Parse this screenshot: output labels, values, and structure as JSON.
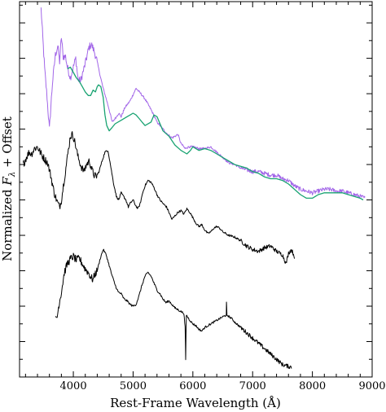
{
  "chart_data": {
    "type": "line",
    "xlabel": "Rest-Frame Wavelength (Å)",
    "ylabel": "Normalized F_λ + Offset",
    "xlim": [
      3100,
      9000
    ],
    "x_ticks": [
      4000,
      5000,
      6000,
      7000,
      8000,
      9000
    ],
    "y_tick_values": false,
    "colors": {
      "violet": "#a266e8",
      "green": "#19a372",
      "black": "#000000"
    },
    "series": [
      {
        "color": "violet",
        "noisy": true,
        "points": [
          [
            3460,
            10.4
          ],
          [
            3490,
            9.55
          ],
          [
            3520,
            8.7
          ],
          [
            3560,
            7.9
          ],
          [
            3600,
            7.0
          ],
          [
            3650,
            8.3
          ],
          [
            3700,
            9.1
          ],
          [
            3740,
            9.35
          ],
          [
            3770,
            8.9
          ],
          [
            3800,
            9.6
          ],
          [
            3830,
            9.05
          ],
          [
            3870,
            9.05
          ],
          [
            3900,
            8.75
          ],
          [
            3950,
            8.45
          ],
          [
            4000,
            8.75
          ],
          [
            4040,
            9.0
          ],
          [
            4080,
            8.4
          ],
          [
            4120,
            8.35
          ],
          [
            4200,
            8.85
          ],
          [
            4260,
            9.3
          ],
          [
            4300,
            9.4
          ],
          [
            4350,
            9.2
          ],
          [
            4400,
            8.9
          ],
          [
            4450,
            8.5
          ],
          [
            4500,
            8.15
          ],
          [
            4560,
            7.8
          ],
          [
            4600,
            7.55
          ],
          [
            4650,
            7.2
          ],
          [
            4700,
            7.3
          ],
          [
            4760,
            7.45
          ],
          [
            4800,
            7.35
          ],
          [
            4860,
            7.6
          ],
          [
            4950,
            7.8
          ],
          [
            5050,
            8.15
          ],
          [
            5130,
            8.0
          ],
          [
            5200,
            7.85
          ],
          [
            5300,
            7.55
          ],
          [
            5400,
            7.2
          ],
          [
            5500,
            7.0
          ],
          [
            5580,
            6.85
          ],
          [
            5650,
            6.75
          ],
          [
            5750,
            6.85
          ],
          [
            5800,
            6.6
          ],
          [
            5870,
            6.45
          ],
          [
            5930,
            6.5
          ],
          [
            6000,
            6.5
          ],
          [
            6100,
            6.45
          ],
          [
            6200,
            6.45
          ],
          [
            6300,
            6.5
          ],
          [
            6400,
            6.35
          ],
          [
            6500,
            6.2
          ],
          [
            6600,
            6.05
          ],
          [
            6700,
            6.0
          ],
          [
            6800,
            5.9
          ],
          [
            6900,
            5.85
          ],
          [
            7000,
            5.8
          ],
          [
            7100,
            5.8
          ],
          [
            7200,
            5.75
          ],
          [
            7300,
            5.7
          ],
          [
            7400,
            5.7
          ],
          [
            7500,
            5.6
          ],
          [
            7600,
            5.55
          ],
          [
            7700,
            5.4
          ],
          [
            7800,
            5.3
          ],
          [
            7900,
            5.25
          ],
          [
            8000,
            5.2
          ],
          [
            8100,
            5.25
          ],
          [
            8200,
            5.3
          ],
          [
            8300,
            5.3
          ],
          [
            8400,
            5.25
          ],
          [
            8500,
            5.25
          ],
          [
            8600,
            5.2
          ],
          [
            8700,
            5.15
          ],
          [
            8800,
            5.1
          ],
          [
            8880,
            5.05
          ]
        ]
      },
      {
        "color": "green",
        "noisy": false,
        "points": [
          [
            3900,
            8.7
          ],
          [
            3950,
            8.75
          ],
          [
            4000,
            8.6
          ],
          [
            4050,
            8.45
          ],
          [
            4100,
            8.35
          ],
          [
            4150,
            8.2
          ],
          [
            4200,
            8.05
          ],
          [
            4250,
            7.95
          ],
          [
            4290,
            7.95
          ],
          [
            4330,
            8.1
          ],
          [
            4370,
            8.05
          ],
          [
            4400,
            8.2
          ],
          [
            4420,
            8.25
          ],
          [
            4460,
            8.2
          ],
          [
            4500,
            7.9
          ],
          [
            4530,
            7.4
          ],
          [
            4560,
            7.1
          ],
          [
            4600,
            6.95
          ],
          [
            4650,
            7.05
          ],
          [
            4700,
            7.15
          ],
          [
            4800,
            7.25
          ],
          [
            4900,
            7.35
          ],
          [
            4950,
            7.4
          ],
          [
            5000,
            7.45
          ],
          [
            5050,
            7.4
          ],
          [
            5100,
            7.3
          ],
          [
            5150,
            7.2
          ],
          [
            5200,
            7.1
          ],
          [
            5300,
            7.2
          ],
          [
            5350,
            7.4
          ],
          [
            5400,
            7.35
          ],
          [
            5450,
            7.15
          ],
          [
            5500,
            6.95
          ],
          [
            5600,
            6.8
          ],
          [
            5700,
            6.55
          ],
          [
            5800,
            6.4
          ],
          [
            5900,
            6.3
          ],
          [
            5960,
            6.4
          ],
          [
            6000,
            6.5
          ],
          [
            6100,
            6.4
          ],
          [
            6200,
            6.45
          ],
          [
            6300,
            6.4
          ],
          [
            6400,
            6.3
          ],
          [
            6500,
            6.2
          ],
          [
            6600,
            6.1
          ],
          [
            6700,
            6.0
          ],
          [
            6800,
            5.95
          ],
          [
            6900,
            5.9
          ],
          [
            7000,
            5.8
          ],
          [
            7100,
            5.75
          ],
          [
            7200,
            5.65
          ],
          [
            7300,
            5.6
          ],
          [
            7400,
            5.6
          ],
          [
            7500,
            5.55
          ],
          [
            7600,
            5.45
          ],
          [
            7700,
            5.3
          ],
          [
            7800,
            5.15
          ],
          [
            7900,
            5.05
          ],
          [
            8000,
            5.05
          ],
          [
            8050,
            5.1
          ],
          [
            8100,
            5.15
          ],
          [
            8200,
            5.2
          ],
          [
            8300,
            5.2
          ],
          [
            8400,
            5.2
          ],
          [
            8500,
            5.2
          ],
          [
            8600,
            5.15
          ],
          [
            8700,
            5.1
          ],
          [
            8800,
            5.05
          ],
          [
            8850,
            5.0
          ]
        ]
      },
      {
        "color": "black",
        "noisy": true,
        "points": [
          [
            3160,
            6.0
          ],
          [
            3200,
            6.15
          ],
          [
            3260,
            6.35
          ],
          [
            3300,
            6.3
          ],
          [
            3350,
            6.45
          ],
          [
            3400,
            6.5
          ],
          [
            3460,
            6.3
          ],
          [
            3520,
            6.15
          ],
          [
            3570,
            6.05
          ],
          [
            3620,
            5.7
          ],
          [
            3680,
            5.2
          ],
          [
            3730,
            4.95
          ],
          [
            3770,
            4.8
          ],
          [
            3800,
            5.0
          ],
          [
            3850,
            5.6
          ],
          [
            3900,
            6.2
          ],
          [
            3950,
            6.8
          ],
          [
            3990,
            6.85
          ],
          [
            4030,
            6.6
          ],
          [
            4080,
            6.2
          ],
          [
            4130,
            5.95
          ],
          [
            4180,
            5.8
          ],
          [
            4220,
            6.0
          ],
          [
            4270,
            6.1
          ],
          [
            4310,
            5.85
          ],
          [
            4350,
            5.7
          ],
          [
            4380,
            5.65
          ],
          [
            4430,
            5.8
          ],
          [
            4480,
            6.1
          ],
          [
            4530,
            6.35
          ],
          [
            4580,
            6.4
          ],
          [
            4620,
            6.0
          ],
          [
            4670,
            5.5
          ],
          [
            4720,
            5.1
          ],
          [
            4760,
            5.0
          ],
          [
            4800,
            5.2
          ],
          [
            4840,
            5.1
          ],
          [
            4880,
            5.0
          ],
          [
            4920,
            4.8
          ],
          [
            4950,
            4.9
          ],
          [
            5000,
            5.0
          ],
          [
            5040,
            4.85
          ],
          [
            5080,
            4.75
          ],
          [
            5120,
            4.9
          ],
          [
            5160,
            5.2
          ],
          [
            5200,
            5.4
          ],
          [
            5250,
            5.55
          ],
          [
            5300,
            5.5
          ],
          [
            5350,
            5.35
          ],
          [
            5400,
            5.15
          ],
          [
            5450,
            5.0
          ],
          [
            5500,
            4.9
          ],
          [
            5560,
            4.8
          ],
          [
            5600,
            4.65
          ],
          [
            5650,
            4.45
          ],
          [
            5700,
            4.55
          ],
          [
            5750,
            4.65
          ],
          [
            5800,
            4.7
          ],
          [
            5850,
            4.6
          ],
          [
            5900,
            4.75
          ],
          [
            5950,
            4.65
          ],
          [
            6000,
            4.5
          ],
          [
            6050,
            4.35
          ],
          [
            6100,
            4.25
          ],
          [
            6150,
            4.3
          ],
          [
            6200,
            4.15
          ],
          [
            6250,
            4.05
          ],
          [
            6300,
            4.1
          ],
          [
            6350,
            4.2
          ],
          [
            6400,
            4.25
          ],
          [
            6450,
            4.2
          ],
          [
            6500,
            4.1
          ],
          [
            6550,
            4.05
          ],
          [
            6600,
            4.0
          ],
          [
            6700,
            3.95
          ],
          [
            6800,
            3.85
          ],
          [
            6900,
            3.7
          ],
          [
            7000,
            3.6
          ],
          [
            7100,
            3.55
          ],
          [
            7200,
            3.65
          ],
          [
            7300,
            3.7
          ],
          [
            7400,
            3.55
          ],
          [
            7500,
            3.45
          ],
          [
            7560,
            3.2
          ],
          [
            7600,
            3.5
          ],
          [
            7650,
            3.6
          ],
          [
            7700,
            3.4
          ]
        ]
      },
      {
        "color": "black",
        "noisy": true,
        "points": [
          [
            3700,
            1.6
          ],
          [
            3730,
            1.7
          ],
          [
            3760,
            2.05
          ],
          [
            3800,
            2.4
          ],
          [
            3850,
            2.95
          ],
          [
            3900,
            3.2
          ],
          [
            3960,
            3.35
          ],
          [
            4000,
            3.4
          ],
          [
            4050,
            3.3
          ],
          [
            4100,
            3.35
          ],
          [
            4150,
            3.2
          ],
          [
            4200,
            3.05
          ],
          [
            4250,
            2.95
          ],
          [
            4300,
            2.8
          ],
          [
            4330,
            2.75
          ],
          [
            4360,
            2.9
          ],
          [
            4400,
            3.0
          ],
          [
            4450,
            3.35
          ],
          [
            4500,
            3.6
          ],
          [
            4550,
            3.45
          ],
          [
            4600,
            3.15
          ],
          [
            4650,
            2.85
          ],
          [
            4700,
            2.6
          ],
          [
            4750,
            2.4
          ],
          [
            4800,
            2.35
          ],
          [
            4850,
            2.2
          ],
          [
            4900,
            2.15
          ],
          [
            4950,
            2.05
          ],
          [
            5000,
            2.0
          ],
          [
            5050,
            2.05
          ],
          [
            5100,
            2.3
          ],
          [
            5150,
            2.6
          ],
          [
            5200,
            2.85
          ],
          [
            5250,
            2.95
          ],
          [
            5300,
            2.85
          ],
          [
            5350,
            2.65
          ],
          [
            5400,
            2.45
          ],
          [
            5450,
            2.35
          ],
          [
            5500,
            2.2
          ],
          [
            5550,
            2.1
          ],
          [
            5600,
            2.15
          ],
          [
            5650,
            2.05
          ],
          [
            5700,
            1.95
          ],
          [
            5750,
            1.9
          ],
          [
            5800,
            1.85
          ],
          [
            5850,
            1.8
          ],
          [
            5870,
            1.4
          ],
          [
            5880,
            0.5
          ],
          [
            5890,
            1.75
          ],
          [
            5950,
            1.6
          ],
          [
            6000,
            1.5
          ],
          [
            6050,
            1.45
          ],
          [
            6100,
            1.35
          ],
          [
            6150,
            1.3
          ],
          [
            6200,
            1.4
          ],
          [
            6250,
            1.45
          ],
          [
            6300,
            1.5
          ],
          [
            6350,
            1.55
          ],
          [
            6400,
            1.6
          ],
          [
            6450,
            1.65
          ],
          [
            6500,
            1.7
          ],
          [
            6560,
            1.75
          ],
          [
            6563,
            2.1
          ],
          [
            6570,
            1.75
          ],
          [
            6650,
            1.65
          ],
          [
            6700,
            1.55
          ],
          [
            6800,
            1.4
          ],
          [
            6900,
            1.25
          ],
          [
            7000,
            1.1
          ],
          [
            7100,
            0.95
          ],
          [
            7200,
            0.8
          ],
          [
            7300,
            0.65
          ],
          [
            7400,
            0.5
          ],
          [
            7500,
            0.35
          ],
          [
            7600,
            0.3
          ],
          [
            7650,
            0.28
          ]
        ]
      }
    ]
  }
}
